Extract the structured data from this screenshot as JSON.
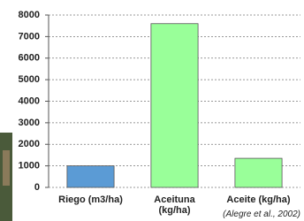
{
  "chart_data": {
    "type": "bar",
    "categories": [
      "Riego (m3/ha)",
      "Aceituna\n(kg/ha)",
      "Aceite (kg/ha)"
    ],
    "values": [
      1000,
      7600,
      1350
    ],
    "colors": [
      "#5b9bd5",
      "#99ff99",
      "#99ff99"
    ],
    "ylim": [
      0,
      8000
    ],
    "yticks": [
      0,
      1000,
      2000,
      3000,
      4000,
      5000,
      6000,
      7000,
      8000
    ],
    "grid": true,
    "annotation": "(Alegre et al., 2002)"
  }
}
